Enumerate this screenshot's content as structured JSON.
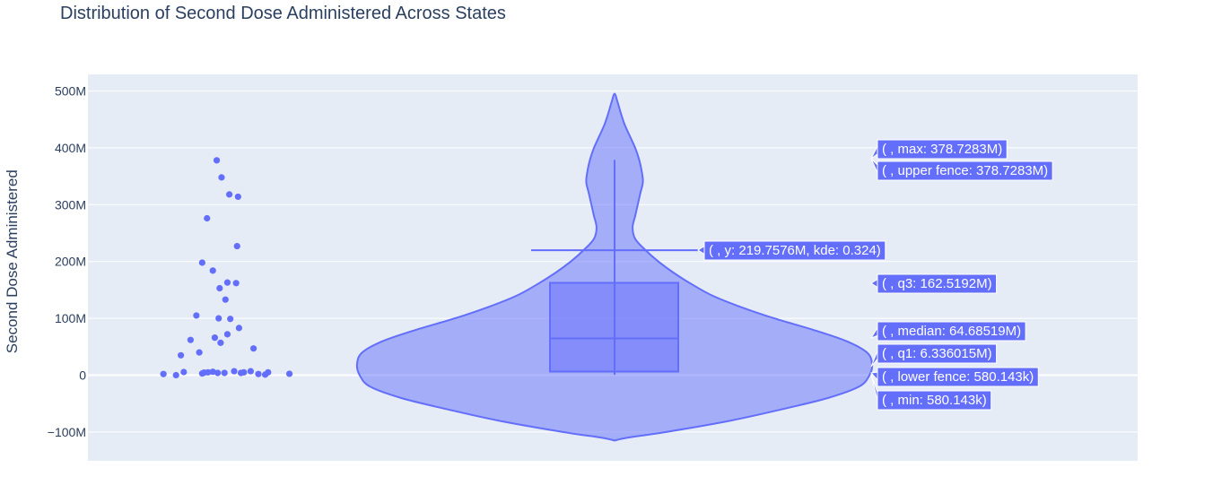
{
  "chart_data": {
    "type": "violin",
    "title": "Distribution of Second Dose Administered Across States",
    "ylabel": "Second Dose Administered",
    "xlabel": "",
    "ylim": [
      -150000000,
      520000000
    ],
    "y_ticks": [
      {
        "value": 500000000,
        "label": "500M"
      },
      {
        "value": 400000000,
        "label": "400M"
      },
      {
        "value": 300000000,
        "label": "300M"
      },
      {
        "value": 200000000,
        "label": "200M"
      },
      {
        "value": 100000000,
        "label": "100M"
      },
      {
        "value": 0,
        "label": "0"
      },
      {
        "value": -100000000,
        "label": "−100M"
      }
    ],
    "grid": true,
    "colors": {
      "plot_bg": "#e5ecf6",
      "grid": "#ffffff",
      "violin_line": "#636efa",
      "violin_fill": "rgba(99,110,250,0.5)",
      "box_fill": "rgba(99,110,250,0.5)",
      "points": "#636efa",
      "label_bg": "#636efa",
      "text": "#2a3f5f"
    },
    "stats": {
      "max": 378728300,
      "upper_fence": 378728300,
      "q3": 162519200,
      "median": 64685190,
      "q1": 6336015,
      "lower_fence": 580143,
      "min": 580143
    },
    "kde_hover": {
      "y": 219757600,
      "kde": 0.324
    },
    "violin_span": [
      -115000000,
      495000000
    ],
    "violin_profile": [
      [
        -115000000,
        0.0
      ],
      [
        -110000000,
        0.05
      ],
      [
        -100000000,
        0.2
      ],
      [
        -80000000,
        0.45
      ],
      [
        -60000000,
        0.65
      ],
      [
        -40000000,
        0.83
      ],
      [
        -20000000,
        0.95
      ],
      [
        0,
        0.99
      ],
      [
        20000000,
        1.0
      ],
      [
        40000000,
        0.98
      ],
      [
        60000000,
        0.9
      ],
      [
        80000000,
        0.77
      ],
      [
        100000000,
        0.62
      ],
      [
        120000000,
        0.49
      ],
      [
        140000000,
        0.38
      ],
      [
        160000000,
        0.3
      ],
      [
        180000000,
        0.23
      ],
      [
        200000000,
        0.17
      ],
      [
        220000000,
        0.12
      ],
      [
        240000000,
        0.08
      ],
      [
        260000000,
        0.07
      ],
      [
        280000000,
        0.08
      ],
      [
        300000000,
        0.09
      ],
      [
        320000000,
        0.1
      ],
      [
        340000000,
        0.11
      ],
      [
        360000000,
        0.105
      ],
      [
        380000000,
        0.095
      ],
      [
        400000000,
        0.08
      ],
      [
        420000000,
        0.06
      ],
      [
        440000000,
        0.04
      ],
      [
        460000000,
        0.025
      ],
      [
        480000000,
        0.012
      ],
      [
        495000000,
        0.0
      ]
    ],
    "points": [
      [
        0.57,
        378000000
      ],
      [
        0.62,
        348000000
      ],
      [
        0.7,
        318000000
      ],
      [
        0.79,
        314000000
      ],
      [
        0.47,
        276000000
      ],
      [
        0.78,
        227000000
      ],
      [
        0.42,
        198000000
      ],
      [
        0.53,
        184000000
      ],
      [
        0.68,
        163000000
      ],
      [
        0.77,
        162000000
      ],
      [
        0.6,
        153000000
      ],
      [
        0.66,
        133000000
      ],
      [
        0.36,
        105000000
      ],
      [
        0.59,
        100000000
      ],
      [
        0.71,
        99000000
      ],
      [
        0.8,
        83000000
      ],
      [
        0.68,
        72000000
      ],
      [
        0.55,
        66000000
      ],
      [
        0.3,
        62000000
      ],
      [
        0.61,
        57000000
      ],
      [
        0.95,
        47000000
      ],
      [
        0.39,
        40000000
      ],
      [
        0.2,
        35000000
      ],
      [
        0.02,
        2000000
      ],
      [
        0.15,
        0
      ],
      [
        0.23,
        5500000
      ],
      [
        0.42,
        3000000
      ],
      [
        0.48,
        5000000
      ],
      [
        0.53,
        6000000
      ],
      [
        0.75,
        7000000
      ],
      [
        0.82,
        4000000
      ],
      [
        0.92,
        7000000
      ],
      [
        1.0,
        2000000
      ],
      [
        1.07,
        1000000
      ],
      [
        0.58,
        4000000
      ],
      [
        0.85,
        5000000
      ],
      [
        0.65,
        4000000
      ],
      [
        1.1,
        5000000
      ],
      [
        1.32,
        2500000
      ],
      [
        0.44,
        4500000
      ]
    ],
    "hover_labels": [
      {
        "id": "max",
        "text": "( , max: 378.7283M)"
      },
      {
        "id": "upper_fence",
        "text": "( , upper fence: 378.7283M)"
      },
      {
        "id": "kde",
        "text": "( , y: 219.7576M, kde: 0.324)"
      },
      {
        "id": "q3",
        "text": "( , q3: 162.5192M)"
      },
      {
        "id": "median",
        "text": "( , median: 64.68519M)"
      },
      {
        "id": "q1",
        "text": "( , q1: 6.336015M)"
      },
      {
        "id": "lower_fence",
        "text": "( , lower fence: 580.143k)"
      },
      {
        "id": "min",
        "text": "( , min: 580.143k)"
      }
    ]
  }
}
